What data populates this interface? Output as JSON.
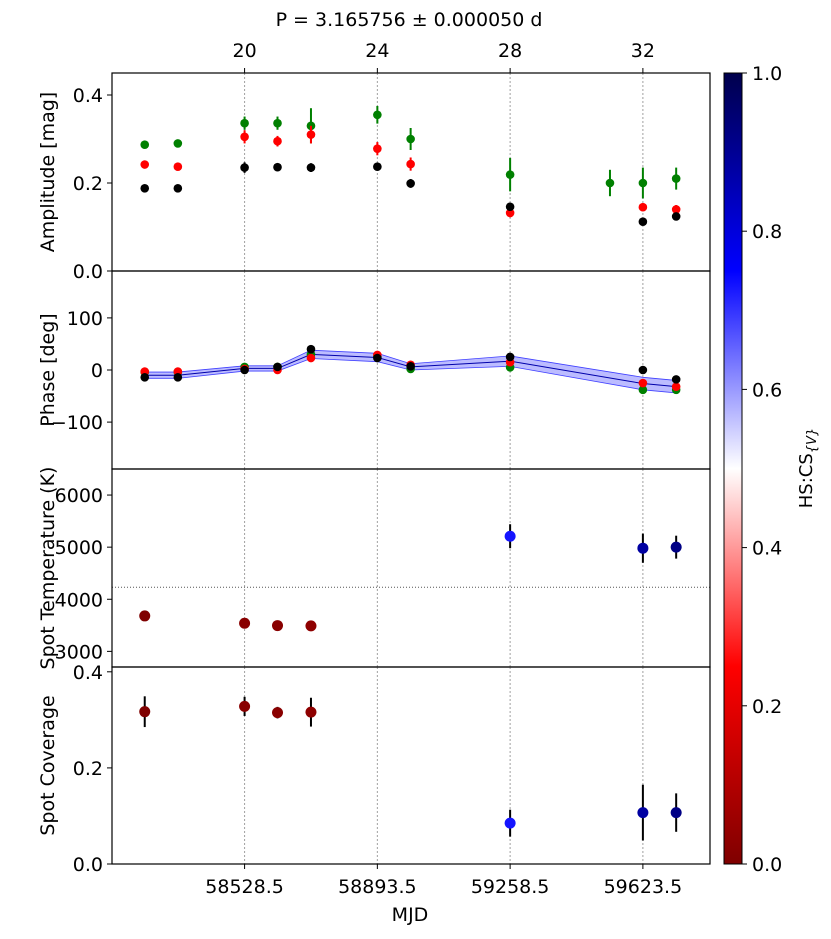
{
  "chart_data": {
    "type": "scatter",
    "title": "P = 3.165756 ± 0.000050 d",
    "xlabel": "MJD",
    "x_range": [
      58164,
      59808
    ],
    "bottom_ticks": [
      {
        "value": 58528.5,
        "label": "58528.5"
      },
      {
        "value": 58893.5,
        "label": "58893.5"
      },
      {
        "value": 59258.5,
        "label": "59258.5"
      },
      {
        "value": 59623.5,
        "label": "59623.5"
      }
    ],
    "top_ticks": [
      {
        "value": 58528.5,
        "label": "20"
      },
      {
        "value": 58893.5,
        "label": "24"
      },
      {
        "value": 59258.5,
        "label": "28"
      },
      {
        "value": 59623.5,
        "label": "32"
      }
    ],
    "colorbar": {
      "label": "HS:CS",
      "label_sub": "{V}",
      "range": [
        0,
        1
      ],
      "colormap": "seismic_r (dark red → red → white → blue → dark navy)",
      "ticks": [
        "0.0",
        "0.2",
        "0.4",
        "0.6",
        "0.8",
        "1.0"
      ]
    },
    "panels": [
      {
        "name": "amplitude",
        "ylabel": "Amplitude [mag]",
        "ylim": [
          0,
          0.45
        ],
        "yticks": [
          {
            "value": 0,
            "label": "0.0"
          },
          {
            "value": 0.2,
            "label": "0.2"
          },
          {
            "value": 0.4,
            "label": "0.4"
          }
        ],
        "series": [
          {
            "name": "green",
            "color": "#008000",
            "points": [
              {
                "x": 58254,
                "y": 0.287,
                "err": 0.005
              },
              {
                "x": 58345,
                "y": 0.29,
                "err": 0.005
              },
              {
                "x": 58528.5,
                "y": 0.336,
                "err": 0.015
              },
              {
                "x": 58619,
                "y": 0.336,
                "err": 0.015
              },
              {
                "x": 58711,
                "y": 0.33,
                "err": 0.04
              },
              {
                "x": 58893.5,
                "y": 0.355,
                "err": 0.02
              },
              {
                "x": 58985,
                "y": 0.3,
                "err": 0.025
              },
              {
                "x": 59258.5,
                "y": 0.219,
                "err": 0.038
              },
              {
                "x": 59533,
                "y": 0.2,
                "err": 0.03
              },
              {
                "x": 59623.5,
                "y": 0.2,
                "err": 0.035
              },
              {
                "x": 59715,
                "y": 0.21,
                "err": 0.025
              }
            ]
          },
          {
            "name": "red",
            "color": "#ff0000",
            "points": [
              {
                "x": 58254,
                "y": 0.242,
                "err": 0.005
              },
              {
                "x": 58345,
                "y": 0.237,
                "err": 0.005
              },
              {
                "x": 58528.5,
                "y": 0.305,
                "err": 0.015
              },
              {
                "x": 58619,
                "y": 0.295,
                "err": 0.012
              },
              {
                "x": 58711,
                "y": 0.31,
                "err": 0.02
              },
              {
                "x": 58893.5,
                "y": 0.278,
                "err": 0.015
              },
              {
                "x": 58985,
                "y": 0.243,
                "err": 0.015
              },
              {
                "x": 59258.5,
                "y": 0.132,
                "err": 0.01
              },
              {
                "x": 59623.5,
                "y": 0.145,
                "err": 0.005
              },
              {
                "x": 59715,
                "y": 0.14,
                "err": 0.01
              }
            ]
          },
          {
            "name": "black",
            "color": "#000000",
            "points": [
              {
                "x": 58254,
                "y": 0.188,
                "err": 0.005
              },
              {
                "x": 58345,
                "y": 0.188,
                "err": 0.005
              },
              {
                "x": 58528.5,
                "y": 0.235,
                "err": 0.012
              },
              {
                "x": 58619,
                "y": 0.236,
                "err": 0.005
              },
              {
                "x": 58711,
                "y": 0.235,
                "err": 0.01
              },
              {
                "x": 58893.5,
                "y": 0.237,
                "err": 0.005
              },
              {
                "x": 58985,
                "y": 0.199,
                "err": 0.01
              },
              {
                "x": 59258.5,
                "y": 0.146,
                "err": 0.008
              },
              {
                "x": 59623.5,
                "y": 0.112,
                "err": 0.005
              },
              {
                "x": 59715,
                "y": 0.124,
                "err": 0.008
              }
            ]
          }
        ]
      },
      {
        "name": "phase",
        "ylabel": "Phase [deg]",
        "ylim": [
          -190,
          190
        ],
        "yticks": [
          {
            "value": 100,
            "label": "100"
          },
          {
            "value": 0,
            "label": "0"
          },
          {
            "value": -100,
            "label": "−100"
          }
        ],
        "band": {
          "color": "#4040ff",
          "x": [
            58254,
            58345,
            58528.5,
            58619,
            58711,
            58893.5,
            58985,
            59258.5,
            59623.5,
            59715
          ],
          "center": [
            -10,
            -10,
            3,
            3,
            30,
            24,
            6,
            17,
            -26,
            -32
          ],
          "half_width": [
            6,
            6,
            5,
            5,
            8,
            8,
            6,
            10,
            12,
            12
          ]
        },
        "series": [
          {
            "name": "green",
            "color": "#008000",
            "points": [
              {
                "x": 58254,
                "y": -4
              },
              {
                "x": 58345,
                "y": -4
              },
              {
                "x": 58528.5,
                "y": 6
              },
              {
                "x": 58619,
                "y": 6
              },
              {
                "x": 58711,
                "y": 30
              },
              {
                "x": 58893.5,
                "y": 26
              },
              {
                "x": 58985,
                "y": 2
              },
              {
                "x": 59258.5,
                "y": 5
              },
              {
                "x": 59623.5,
                "y": -38
              },
              {
                "x": 59715,
                "y": -38
              }
            ]
          },
          {
            "name": "red",
            "color": "#ff0000",
            "points": [
              {
                "x": 58254,
                "y": -3
              },
              {
                "x": 58345,
                "y": -3
              },
              {
                "x": 58528.5,
                "y": 2
              },
              {
                "x": 58619,
                "y": 0
              },
              {
                "x": 58711,
                "y": 23
              },
              {
                "x": 58893.5,
                "y": 29
              },
              {
                "x": 58985,
                "y": 10
              },
              {
                "x": 59258.5,
                "y": 15
              },
              {
                "x": 59623.5,
                "y": -25
              },
              {
                "x": 59715,
                "y": -32
              }
            ]
          },
          {
            "name": "black",
            "color": "#000000",
            "points": [
              {
                "x": 58254,
                "y": -14
              },
              {
                "x": 58345,
                "y": -14
              },
              {
                "x": 58528.5,
                "y": 0
              },
              {
                "x": 58619,
                "y": 6
              },
              {
                "x": 58711,
                "y": 40
              },
              {
                "x": 58893.5,
                "y": 23
              },
              {
                "x": 58985,
                "y": 7
              },
              {
                "x": 59258.5,
                "y": 25
              },
              {
                "x": 59623.5,
                "y": 0
              },
              {
                "x": 59715,
                "y": -18
              }
            ]
          }
        ]
      },
      {
        "name": "spot_temperature",
        "ylabel": "Spot Temperature (K)",
        "ylim": [
          2700,
          6500
        ],
        "yticks": [
          {
            "value": 3000,
            "label": "3000"
          },
          {
            "value": 4000,
            "label": "4000"
          },
          {
            "value": 5000,
            "label": "5000"
          },
          {
            "value": 6000,
            "label": "6000"
          }
        ],
        "hline": 4230,
        "points": [
          {
            "x": 58254,
            "y": 3680,
            "err": 40,
            "c": 0.0
          },
          {
            "x": 58528.5,
            "y": 3540,
            "err": 40,
            "c": 0.02
          },
          {
            "x": 58619,
            "y": 3495,
            "err": 50,
            "c": 0.02
          },
          {
            "x": 58711,
            "y": 3490,
            "err": 70,
            "c": 0.03
          },
          {
            "x": 59258.5,
            "y": 5210,
            "err": 230,
            "c": 0.73
          },
          {
            "x": 59623.5,
            "y": 4980,
            "err": 280,
            "c": 0.88
          },
          {
            "x": 59715,
            "y": 5000,
            "err": 220,
            "c": 0.92
          }
        ]
      },
      {
        "name": "spot_coverage",
        "ylabel": "Spot Coverage",
        "ylim": [
          0,
          0.41
        ],
        "yticks": [
          {
            "value": 0,
            "label": "0.0"
          },
          {
            "value": 0.2,
            "label": "0.2"
          },
          {
            "value": 0.4,
            "label": "0.4"
          }
        ],
        "points": [
          {
            "x": 58254,
            "y": 0.317,
            "err": 0.032,
            "c": 0.0
          },
          {
            "x": 58528.5,
            "y": 0.328,
            "err": 0.02,
            "c": 0.02
          },
          {
            "x": 58619,
            "y": 0.315,
            "err": 0.012,
            "c": 0.02
          },
          {
            "x": 58711,
            "y": 0.316,
            "err": 0.03,
            "c": 0.03
          },
          {
            "x": 59258.5,
            "y": 0.085,
            "err": 0.028,
            "c": 0.73
          },
          {
            "x": 59623.5,
            "y": 0.107,
            "err": 0.058,
            "c": 0.88
          },
          {
            "x": 59715,
            "y": 0.107,
            "err": 0.04,
            "c": 0.92
          }
        ]
      }
    ]
  }
}
